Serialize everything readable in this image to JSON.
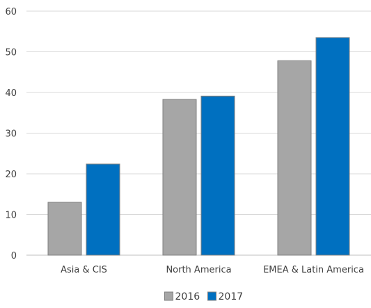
{
  "chart_data": {
    "type": "bar",
    "categories": [
      "Asia & CIS",
      "North America",
      "EMEA & Latin America"
    ],
    "series": [
      {
        "name": "2016",
        "values": [
          13,
          38.3,
          47.8
        ],
        "color": "#a6a6a6"
      },
      {
        "name": "2017",
        "values": [
          22.4,
          39.1,
          53.5
        ],
        "color": "#0070c0"
      }
    ],
    "ylim": [
      0,
      60
    ],
    "yticks": [
      "0",
      "10",
      "20",
      "30",
      "40",
      "50",
      "60"
    ],
    "grid": true,
    "legend_position": "bottom-center"
  }
}
